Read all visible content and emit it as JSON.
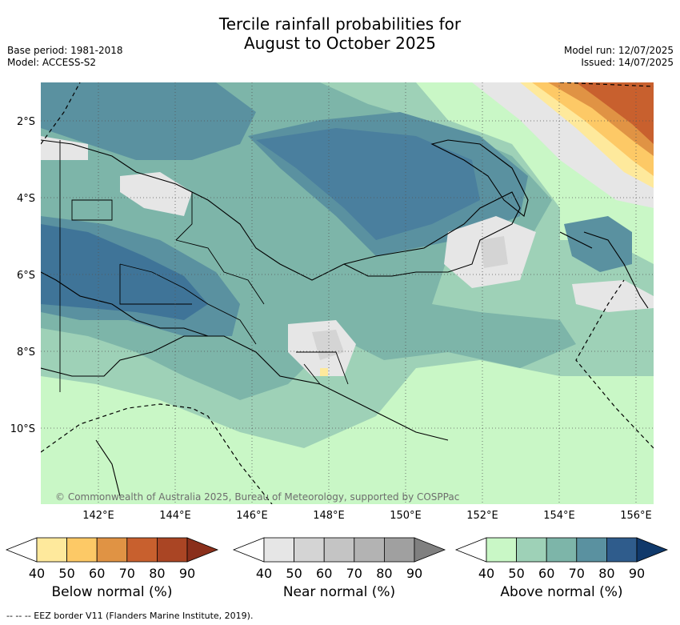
{
  "title_line1": "Tercile rainfall probabilities for",
  "title_line2": "August to October 2025",
  "base_period": "Base period: 1981-2018",
  "model": "Model: ACCESS-S2",
  "model_run": "Model run: 12/07/2025",
  "issued": "Issued: 14/07/2025",
  "copyright": "© Commonwealth of Australia 2025, Bureau of Meteorology, supported by COSPPac",
  "lat_labels": [
    "2°S",
    "4°S",
    "6°S",
    "8°S",
    "10°S"
  ],
  "lon_labels": [
    "142°E",
    "144°E",
    "146°E",
    "148°E",
    "150°E",
    "152°E",
    "154°E",
    "156°E"
  ],
  "colorbars": [
    {
      "label": "Below normal (%)",
      "ticks": [
        "40",
        "50",
        "60",
        "70",
        "80",
        "90"
      ],
      "colors": [
        "#ffffff",
        "#fee99c",
        "#fdc966",
        "#e09344",
        "#c8602e",
        "#aa4524",
        "#8a2f1b"
      ]
    },
    {
      "label": "Near normal (%)",
      "ticks": [
        "40",
        "50",
        "60",
        "70",
        "80",
        "90"
      ],
      "colors": [
        "#ffffff",
        "#e6e6e6",
        "#d4d4d4",
        "#c4c4c4",
        "#b3b3b3",
        "#a0a0a0",
        "#808080"
      ]
    },
    {
      "label": "Above normal (%)",
      "ticks": [
        "40",
        "50",
        "60",
        "70",
        "80",
        "90"
      ],
      "colors": [
        "#ffffff",
        "#c9f7c6",
        "#9ed1b7",
        "#7db5a9",
        "#5a91a0",
        "#2f5c8c",
        "#10396b"
      ]
    }
  ],
  "footnote": "--  --  -- EEZ border V11 (Flanders Marine Institute, 2019)."
}
